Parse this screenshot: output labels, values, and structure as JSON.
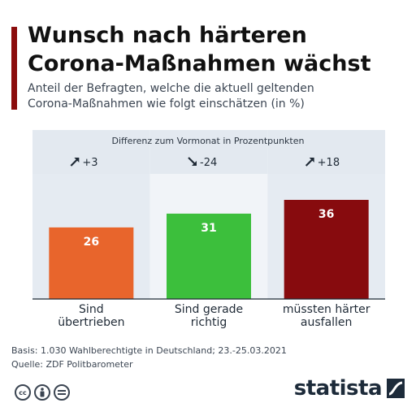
{
  "header": {
    "title_line1": "Wunsch nach härteren",
    "title_line2": "Corona-Maßnahmen wächst",
    "subtitle_line1": "Anteil der Befragten, welche die aktuell geltenden",
    "subtitle_line2": "Corona-Maßnahmen wie folgt einschätzen (in %)"
  },
  "chart_data": {
    "type": "bar",
    "categories": [
      [
        "Sind",
        "übertrieben"
      ],
      [
        "Sind gerade",
        "richtig"
      ],
      [
        "müssten härter",
        "ausfallen"
      ]
    ],
    "values": [
      26,
      31,
      36
    ],
    "colors": [
      "#e8652c",
      "#3cbf3c",
      "#870b0e"
    ],
    "change_header": "Differenz zum Vormonat in Prozentpunkten",
    "changes": [
      "+3",
      "-24",
      "+18"
    ],
    "change_direction": [
      "up",
      "down",
      "up"
    ],
    "ylim": [
      0,
      36
    ]
  },
  "footer": {
    "basis": "Basis: 1.030 Wahlberechtigte in Deutschland; 23.-25.03.2021",
    "source": "Quelle: ZDF Politbarometer",
    "cc_icons": [
      "cc",
      "by",
      "nd"
    ],
    "brand": "statista"
  }
}
